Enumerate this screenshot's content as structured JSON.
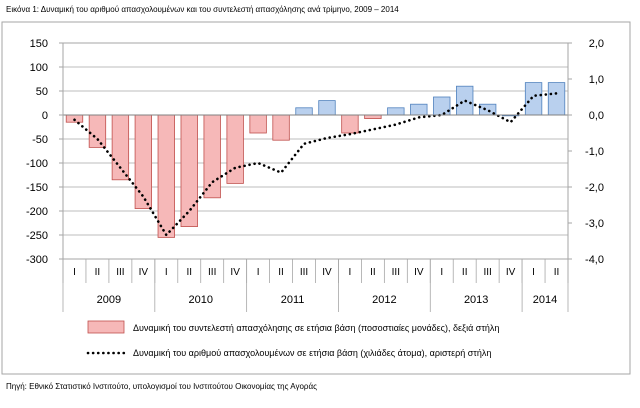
{
  "figure_title": "Εικόνα 1: Δυναμική του αριθμού απασχολουμένων και του συντελεστή απασχόλησης ανά τρίμηνο, 2009 – 2014",
  "source_note": "Πηγή: Εθνικό Στατιστικό Ινστιτούτο, υπολογισμοί του Ινστιτούτου Οικονομίας της Αγοράς",
  "chart_data": {
    "type": "bar",
    "categories": [
      "I",
      "II",
      "III",
      "IV",
      "I",
      "II",
      "III",
      "IV",
      "I",
      "II",
      "III",
      "IV",
      "I",
      "II",
      "III",
      "IV",
      "I",
      "II",
      "III",
      "IV",
      "I",
      "II"
    ],
    "years": [
      {
        "label": "2009",
        "quarters": 4
      },
      {
        "label": "2010",
        "quarters": 4
      },
      {
        "label": "2011",
        "quarters": 4
      },
      {
        "label": "2012",
        "quarters": 4
      },
      {
        "label": "2013",
        "quarters": 4
      },
      {
        "label": "2014",
        "quarters": 2
      }
    ],
    "series": [
      {
        "name": "Δυναμική του συντελεστή απασχόλησης σε ετήσια βάση (ποσοστιαίες μονάδες), δεξιά στήλη",
        "type": "bar",
        "axis": "right",
        "values": [
          -0.2,
          -0.9,
          -1.8,
          -2.6,
          -3.4,
          -3.1,
          -2.3,
          -1.9,
          -0.5,
          -0.7,
          0.2,
          0.4,
          -0.5,
          -0.1,
          0.2,
          0.3,
          0.5,
          0.8,
          0.3,
          0.0,
          0.9,
          0.9
        ]
      },
      {
        "name": "Δυναμική του αριθμού απασχολουμένων σε ετήσια βάση (χιλιάδες άτομα), αριστερή στήλη",
        "type": "line",
        "axis": "left",
        "values": [
          -10,
          -50,
          -110,
          -170,
          -250,
          -200,
          -140,
          -110,
          -100,
          -120,
          -60,
          -48,
          -40,
          -30,
          -20,
          -5,
          0,
          30,
          10,
          -15,
          40,
          45
        ]
      }
    ],
    "left_axis": {
      "ylim": [
        -300,
        150
      ],
      "ticks": [
        "150",
        "100",
        "50",
        "0",
        "-50",
        "-100",
        "-150",
        "-200",
        "-250",
        "-300"
      ]
    },
    "right_axis": {
      "ylim": [
        -4,
        2
      ],
      "ticks": [
        "2,0",
        "1,0",
        "0,0",
        "-1,0",
        "-2,0",
        "-3,0",
        "-4,0"
      ]
    },
    "grid": true,
    "legend_position": "bottom",
    "colors": {
      "negative_bar_fill": "#f6b8b8",
      "negative_bar_stroke": "#c0504d",
      "positive_bar_fill": "#b9d0ee",
      "positive_bar_stroke": "#4f81bd",
      "line": "#000000",
      "grid": "#a6a6a6",
      "frame": "#a6a6a6"
    }
  }
}
